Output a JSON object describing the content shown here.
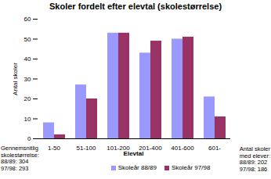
{
  "chart_data": {
    "type": "bar",
    "title": "Skoler fordelt efter elevtal (skolestørrelse)",
    "x_label": "Elevtal",
    "y_label": "Antal skoler",
    "categories": [
      "1-50",
      "51-100",
      "101-200",
      "201-400",
      "401-600",
      "601-"
    ],
    "series": [
      {
        "name": "Skoleår 88/89",
        "color": "#9999ff",
        "values": [
          8,
          27,
          53,
          43,
          50,
          21
        ]
      },
      {
        "name": "Skoleår 97/98",
        "color": "#993366",
        "values": [
          2,
          20,
          53,
          49,
          51,
          11
        ]
      }
    ],
    "ylim": [
      0,
      60
    ],
    "yticks": [
      0,
      10,
      20,
      30,
      40,
      50,
      60
    ],
    "grid": false,
    "legend": "bottom",
    "annotations": [
      [
        "Gennemsnitlig",
        "skolestørrelse:",
        "88/89: 304",
        "97/98: 293"
      ],
      [
        "Antal skoler",
        "med elever:",
        "88/89: 202",
        "97/98: 186"
      ]
    ]
  }
}
